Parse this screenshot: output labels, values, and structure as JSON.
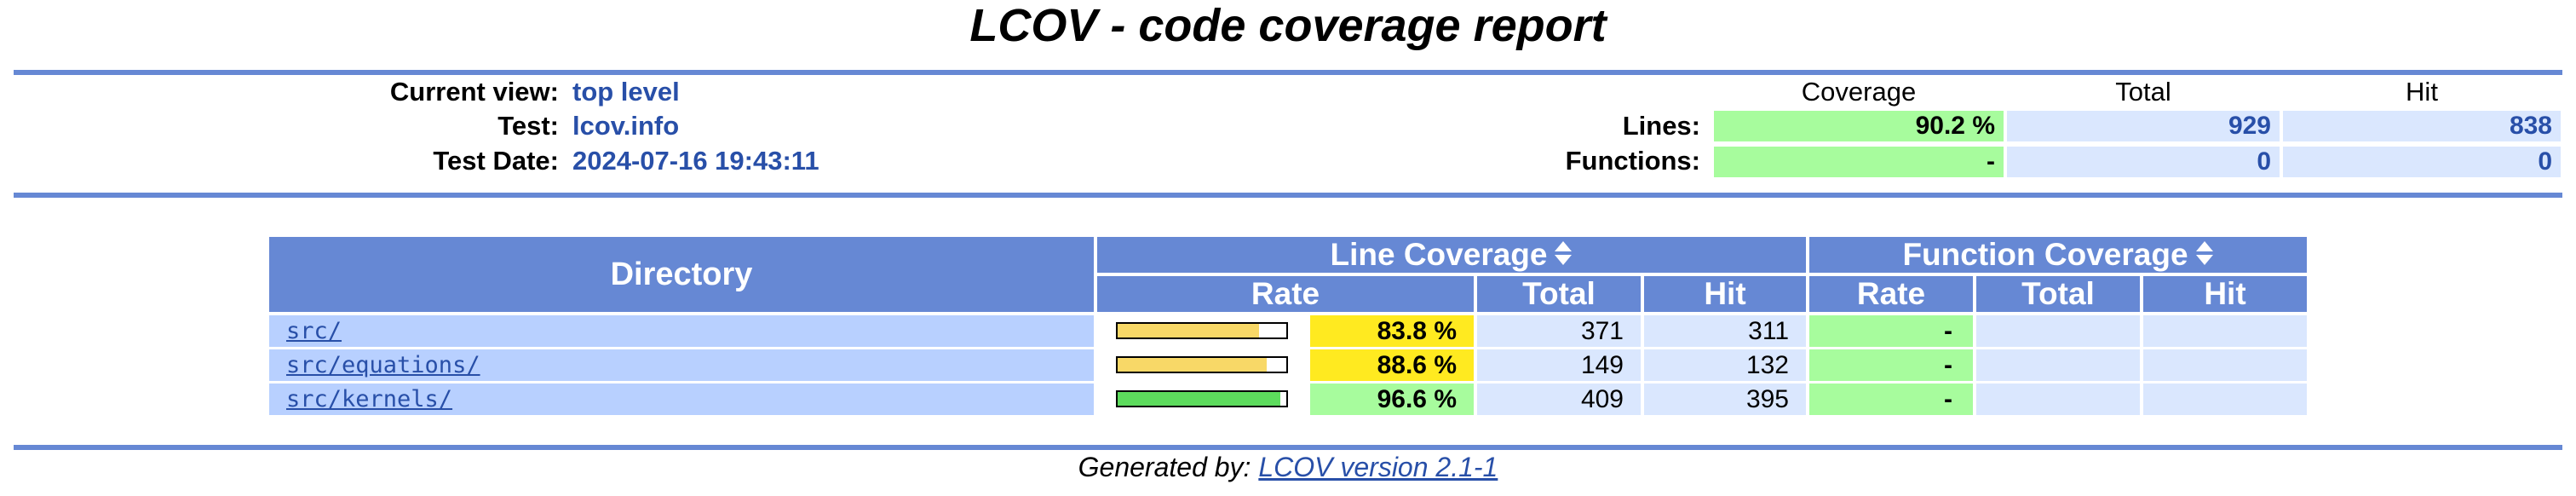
{
  "title": "LCOV - code coverage report",
  "header": {
    "current_view_label": "Current view:",
    "current_view_value": "top level",
    "test_label": "Test:",
    "test_value": "lcov.info",
    "test_date_label": "Test Date:",
    "test_date_value": "2024-07-16 19:43:11"
  },
  "summary": {
    "col_coverage": "Coverage",
    "col_total": "Total",
    "col_hit": "Hit",
    "lines_label": "Lines:",
    "lines_coverage": "90.2 %",
    "lines_total": "929",
    "lines_hit": "838",
    "functions_label": "Functions:",
    "functions_coverage": "-",
    "functions_total": "0",
    "functions_hit": "0"
  },
  "table": {
    "directory_header": "Directory",
    "line_coverage_header": "Line Coverage",
    "function_coverage_header": "Function Coverage",
    "rate_header": "Rate",
    "total_header": "Total",
    "hit_header": "Hit",
    "rows": [
      {
        "dir": "src/",
        "line_rate": "83.8 %",
        "line_fraction": 0.838,
        "line_total": "371",
        "line_hit": "311",
        "fn_rate": "-",
        "fn_total": "",
        "fn_hit": "",
        "level": "medium"
      },
      {
        "dir": "src/equations/",
        "line_rate": "88.6 %",
        "line_fraction": 0.886,
        "line_total": "149",
        "line_hit": "132",
        "fn_rate": "-",
        "fn_total": "",
        "fn_hit": "",
        "level": "medium"
      },
      {
        "dir": "src/kernels/",
        "line_rate": "96.6 %",
        "line_fraction": 0.966,
        "line_total": "409",
        "line_hit": "395",
        "fn_rate": "-",
        "fn_total": "",
        "fn_hit": "",
        "level": "high"
      }
    ]
  },
  "footer": {
    "prefix": "Generated by:",
    "link_text": "LCOV version 2.1-1"
  },
  "colors": {
    "header_blue": "#6688d4",
    "medium_yellow": "#ffea20",
    "bar_yellow": "#f8d867",
    "high_green": "#a7fc9d",
    "bar_green": "#5ddc5d"
  },
  "icons": {
    "sort": "sort-icon"
  }
}
